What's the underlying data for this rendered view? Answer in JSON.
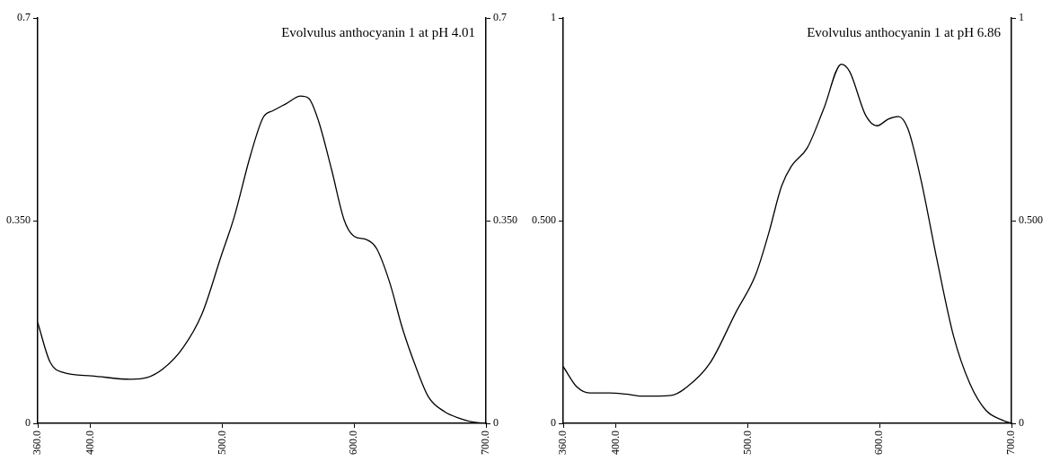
{
  "chart_data": [
    {
      "type": "line",
      "title": "Evolvulus anthocyanin 1 at pH 4.01",
      "grid": false,
      "legend": false,
      "marker": "none",
      "line_style": "solid",
      "series": [
        {
          "color": "#000000",
          "x": [
            360,
            369.3,
            379,
            401,
            430.6,
            443,
            455,
            470,
            484.6,
            499.3,
            509,
            521.4,
            531,
            538.6,
            548.4,
            559.4,
            565.6,
            573,
            582.8,
            592.6,
            600,
            609.7,
            617,
            627,
            636.5,
            646.4,
            656.3,
            668.6,
            680.8,
            690.6,
            700
          ],
          "values": [
            0.174,
            0.106,
            0.088,
            0.082,
            0.076,
            0.079,
            0.094,
            0.13,
            0.189,
            0.29,
            0.356,
            0.463,
            0.528,
            0.54,
            0.552,
            0.565,
            0.561,
            0.522,
            0.439,
            0.35,
            0.323,
            0.317,
            0.302,
            0.243,
            0.165,
            0.1,
            0.046,
            0.02,
            0.008,
            0.002,
            0
          ]
        }
      ],
      "xlim": [
        360,
        700
      ],
      "xticks": [
        {
          "value": 360,
          "label": "360.0"
        },
        {
          "value": 400,
          "label": "400.0"
        },
        {
          "value": 500,
          "label": "500.0"
        },
        {
          "value": 600,
          "label": "600.0"
        },
        {
          "value": 700,
          "label": "700.0"
        }
      ],
      "ylim": [
        0,
        0.7
      ],
      "yticks": [
        0,
        {
          "value": 0.35,
          "label": "0.350"
        },
        0.7
      ],
      "y2lim": [
        0,
        0.7
      ],
      "y2ticks": [
        0,
        {
          "value": 0.35,
          "label": "0.350"
        },
        0.7
      ]
    },
    {
      "type": "line",
      "title": "Evolvulus anthocyanin 1 at pH 6.86",
      "grid": false,
      "legend": false,
      "marker": "none",
      "line_style": "solid",
      "series": [
        {
          "color": "#000000",
          "x": [
            360,
            370.3,
            380.2,
            395,
            407.3,
            419.6,
            441.8,
            454,
            471.4,
            491,
            505.9,
            515.7,
            525.5,
            533,
            545.2,
            557.6,
            571,
            577.2,
            589.5,
            598,
            606.8,
            614.2,
            621.5,
            631.4,
            643.7,
            656,
            668.3,
            680.6,
            693,
            700
          ],
          "values": [
            0.14,
            0.09,
            0.075,
            0.075,
            0.072,
            0.067,
            0.069,
            0.09,
            0.149,
            0.274,
            0.366,
            0.467,
            0.584,
            0.634,
            0.68,
            0.776,
            0.886,
            0.868,
            0.759,
            0.734,
            0.751,
            0.757,
            0.726,
            0.6,
            0.4,
            0.216,
            0.099,
            0.032,
            0.008,
            0
          ]
        }
      ],
      "xlim": [
        360,
        700
      ],
      "xticks": [
        {
          "value": 360,
          "label": "360.0"
        },
        {
          "value": 400,
          "label": "400.0"
        },
        {
          "value": 500,
          "label": "500.0"
        },
        {
          "value": 600,
          "label": "600.0"
        },
        {
          "value": 700,
          "label": "700.0"
        }
      ],
      "ylim": [
        0,
        1
      ],
      "yticks": [
        0,
        {
          "value": 0.5,
          "label": "0.500"
        },
        1
      ],
      "y2lim": [
        0,
        1
      ],
      "y2ticks": [
        0,
        {
          "value": 0.5,
          "label": "0.500"
        },
        1
      ]
    }
  ]
}
